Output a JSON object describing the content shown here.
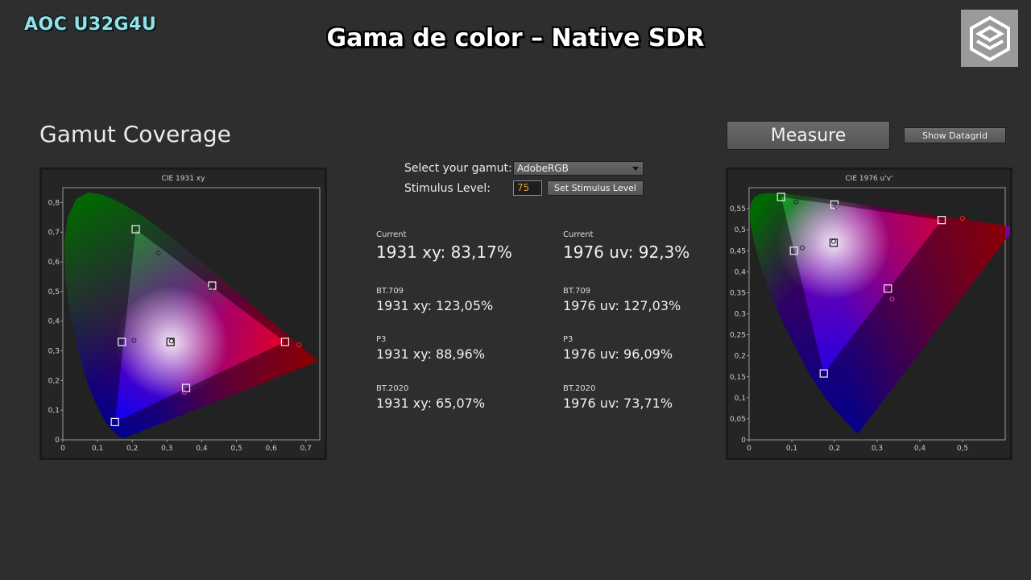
{
  "overlay": {
    "brand": "AOC U32G4U",
    "title": "Gama de color – Native SDR",
    "logo_icon": "hexagon-cube-logo-icon"
  },
  "app": {
    "heading": "Gamut Coverage",
    "measure_button": "Measure",
    "datagrid_button": "Show Datagrid"
  },
  "controls": {
    "gamut_label": "Select your gamut:",
    "gamut_selected": "AdobeRGB",
    "stimulus_label": "Stimulus Level:",
    "stimulus_value": "75",
    "stimulus_button": "Set Stimulus Level"
  },
  "results": {
    "left": [
      {
        "label": "Current",
        "value": "1931 xy: 83,17%"
      },
      {
        "label": "BT.709",
        "value": "1931 xy: 123,05%"
      },
      {
        "label": "P3",
        "value": "1931 xy: 88,96%"
      },
      {
        "label": "BT.2020",
        "value": "1931 xy: 65,07%"
      }
    ],
    "right": [
      {
        "label": "Current",
        "value": "1976 uv: 92,3%"
      },
      {
        "label": "BT.709",
        "value": "1976 uv: 127,03%"
      },
      {
        "label": "P3",
        "value": "1976 uv: 96,09%"
      },
      {
        "label": "BT.2020",
        "value": "1976 uv: 73,71%"
      }
    ]
  },
  "chart_data": [
    {
      "type": "scatter",
      "title": "CIE 1931 xy",
      "xlim": [
        0,
        0.74
      ],
      "ylim": [
        0,
        0.85
      ],
      "x_ticks": [
        "0",
        "0,1",
        "0,2",
        "0,3",
        "0,4",
        "0,5",
        "0,6",
        "0,7"
      ],
      "y_ticks": [
        "0",
        "0,1",
        "0,2",
        "0,3",
        "0,4",
        "0,5",
        "0,6",
        "0,7",
        "0,8"
      ],
      "target_points": [
        {
          "x": 0.21,
          "y": 0.71
        },
        {
          "x": 0.43,
          "y": 0.52
        },
        {
          "x": 0.64,
          "y": 0.33
        },
        {
          "x": 0.31,
          "y": 0.33
        },
        {
          "x": 0.17,
          "y": 0.33
        },
        {
          "x": 0.355,
          "y": 0.175
        },
        {
          "x": 0.15,
          "y": 0.06
        }
      ],
      "measured_points": [
        {
          "x": 0.275,
          "y": 0.63
        },
        {
          "x": 0.425,
          "y": 0.51
        },
        {
          "x": 0.68,
          "y": 0.32
        },
        {
          "x": 0.313,
          "y": 0.333
        },
        {
          "x": 0.205,
          "y": 0.335
        },
        {
          "x": 0.35,
          "y": 0.16
        }
      ]
    },
    {
      "type": "scatter",
      "title": "CIE 1976 u'v'",
      "xlim": [
        0,
        0.6
      ],
      "ylim": [
        0,
        0.6
      ],
      "x_ticks": [
        "0",
        "0,1",
        "0,2",
        "0,3",
        "0,4",
        "0,5"
      ],
      "y_ticks": [
        "0",
        "0,05",
        "0,1",
        "0,15",
        "0,2",
        "0,25",
        "0,3",
        "0,35",
        "0,4",
        "0,45",
        "0,5",
        "0,55"
      ],
      "target_points": [
        {
          "x": 0.075,
          "y": 0.578
        },
        {
          "x": 0.2,
          "y": 0.56
        },
        {
          "x": 0.451,
          "y": 0.523
        },
        {
          "x": 0.198,
          "y": 0.469
        },
        {
          "x": 0.105,
          "y": 0.45
        },
        {
          "x": 0.325,
          "y": 0.36
        },
        {
          "x": 0.175,
          "y": 0.158
        }
      ],
      "measured_points": [
        {
          "x": 0.11,
          "y": 0.566
        },
        {
          "x": 0.205,
          "y": 0.556
        },
        {
          "x": 0.5,
          "y": 0.527
        },
        {
          "x": 0.198,
          "y": 0.472
        },
        {
          "x": 0.125,
          "y": 0.457
        },
        {
          "x": 0.335,
          "y": 0.335
        }
      ]
    }
  ]
}
